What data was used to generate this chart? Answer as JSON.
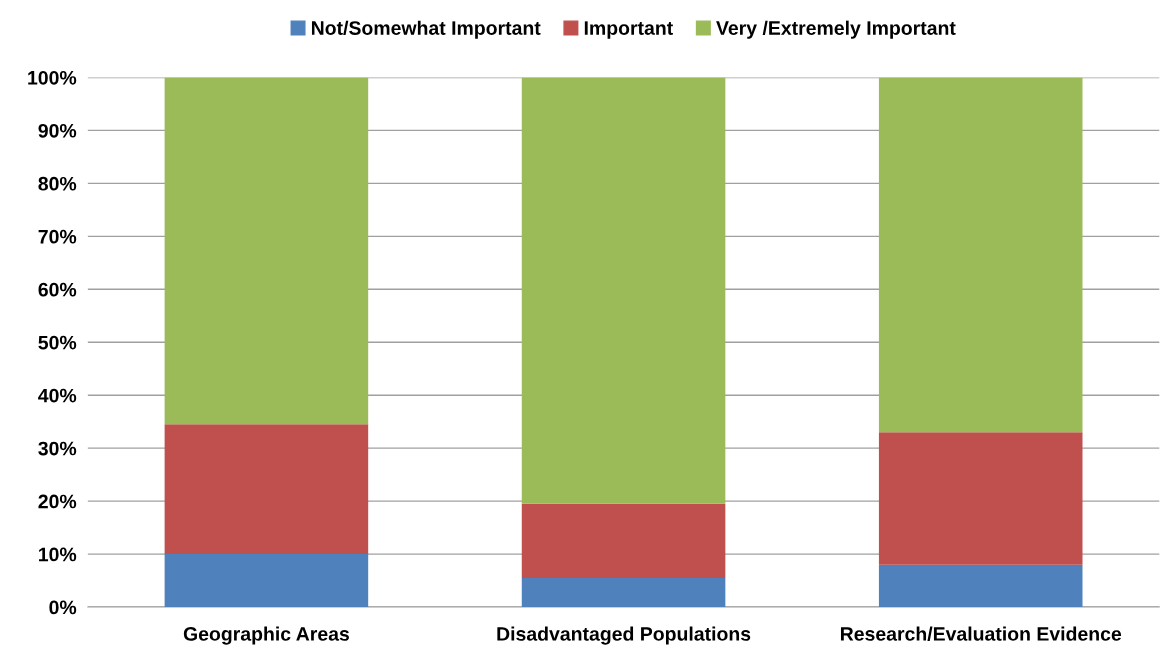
{
  "chart_data": {
    "type": "bar",
    "stacked": true,
    "categories": [
      "Geographic Areas",
      "Disadvantaged Populations",
      "Research/Evaluation Evidence"
    ],
    "series": [
      {
        "name": "Not/Somewhat Important",
        "color": "#4f81bd",
        "values": [
          10,
          5.5,
          8
        ]
      },
      {
        "name": "Important",
        "color": "#c0504d",
        "values": [
          24.5,
          14,
          25
        ]
      },
      {
        "name": "Very /Extremely Important",
        "color": "#9bbb59",
        "values": [
          65.5,
          80.5,
          67
        ]
      }
    ],
    "ylim": [
      0,
      100
    ],
    "yticks": [
      {
        "value": 0,
        "label": "0%"
      },
      {
        "value": 10,
        "label": "10%"
      },
      {
        "value": 20,
        "label": "20%"
      },
      {
        "value": 30,
        "label": "30%"
      },
      {
        "value": 40,
        "label": "40%"
      },
      {
        "value": 50,
        "label": "50%"
      },
      {
        "value": 60,
        "label": "60%"
      },
      {
        "value": 70,
        "label": "70%"
      },
      {
        "value": 80,
        "label": "80%"
      },
      {
        "value": 90,
        "label": "90%"
      },
      {
        "value": 100,
        "label": "100%"
      }
    ],
    "grid": "y",
    "legend": "top"
  }
}
